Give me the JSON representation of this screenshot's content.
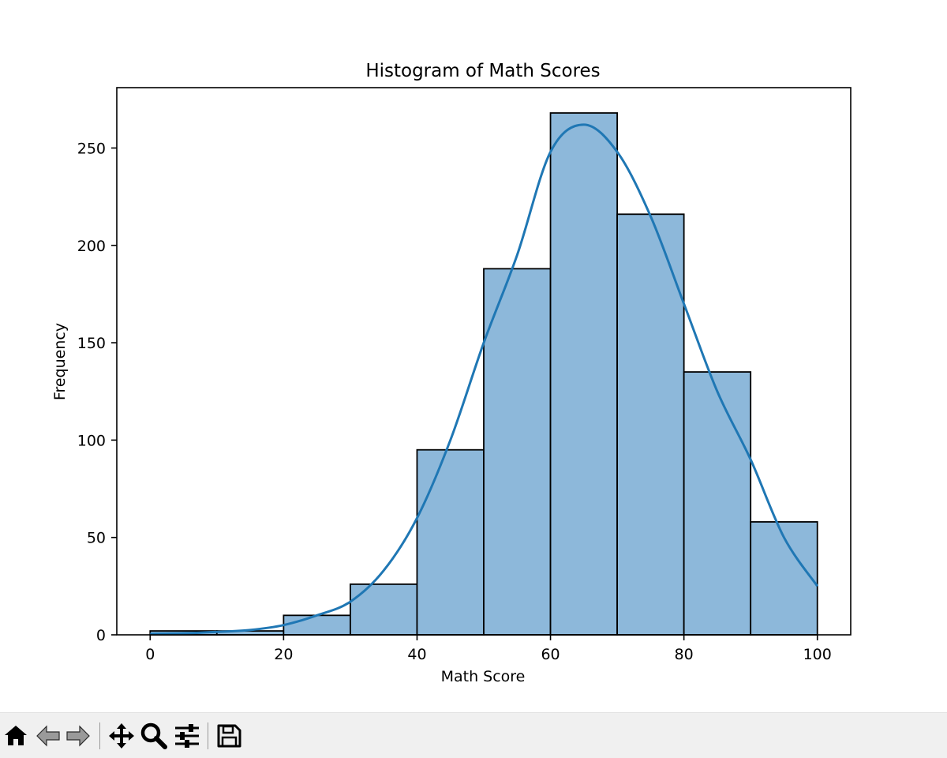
{
  "chart_data": {
    "type": "bar",
    "title": "Histogram of Math Scores",
    "xlabel": "Math Score",
    "ylabel": "Frequency",
    "bins": [
      {
        "x0": 0,
        "x1": 10,
        "value": 2
      },
      {
        "x0": 10,
        "x1": 20,
        "value": 2
      },
      {
        "x0": 20,
        "x1": 30,
        "value": 10
      },
      {
        "x0": 30,
        "x1": 40,
        "value": 26
      },
      {
        "x0": 40,
        "x1": 50,
        "value": 95
      },
      {
        "x0": 50,
        "x1": 60,
        "value": 188
      },
      {
        "x0": 60,
        "x1": 70,
        "value": 268
      },
      {
        "x0": 70,
        "x1": 80,
        "value": 216
      },
      {
        "x0": 80,
        "x1": 90,
        "value": 135
      },
      {
        "x0": 90,
        "x1": 100,
        "value": 58
      }
    ],
    "kde": {
      "x": [
        0,
        5,
        10,
        15,
        20,
        25,
        30,
        35,
        40,
        45,
        50,
        55,
        60,
        65,
        70,
        75,
        80,
        85,
        90,
        95,
        100
      ],
      "y": [
        0.5,
        0.8,
        1.5,
        2.5,
        5,
        10,
        17,
        33,
        60,
        100,
        150,
        195,
        248,
        262,
        248,
        215,
        170,
        125,
        90,
        50,
        25
      ]
    },
    "xlim": [
      -5,
      105
    ],
    "ylim": [
      0,
      281
    ],
    "xticks": [
      0,
      20,
      40,
      60,
      80,
      100
    ],
    "yticks": [
      0,
      50,
      100,
      150,
      200,
      250
    ],
    "grid": false,
    "colors": {
      "bar_fill": "#8db8da",
      "bar_edge": "#000000",
      "kde_line": "#1f77b4"
    }
  },
  "toolbar": {
    "buttons": [
      {
        "name": "home-button",
        "icon": "home-icon"
      },
      {
        "name": "back-button",
        "icon": "back-arrow-icon"
      },
      {
        "name": "forward-button",
        "icon": "forward-arrow-icon"
      },
      {
        "name": "pan-button",
        "icon": "move-icon"
      },
      {
        "name": "zoom-button",
        "icon": "magnifier-icon"
      },
      {
        "name": "configure-subplots-button",
        "icon": "sliders-icon"
      },
      {
        "name": "save-button",
        "icon": "floppy-disk-icon"
      }
    ]
  }
}
